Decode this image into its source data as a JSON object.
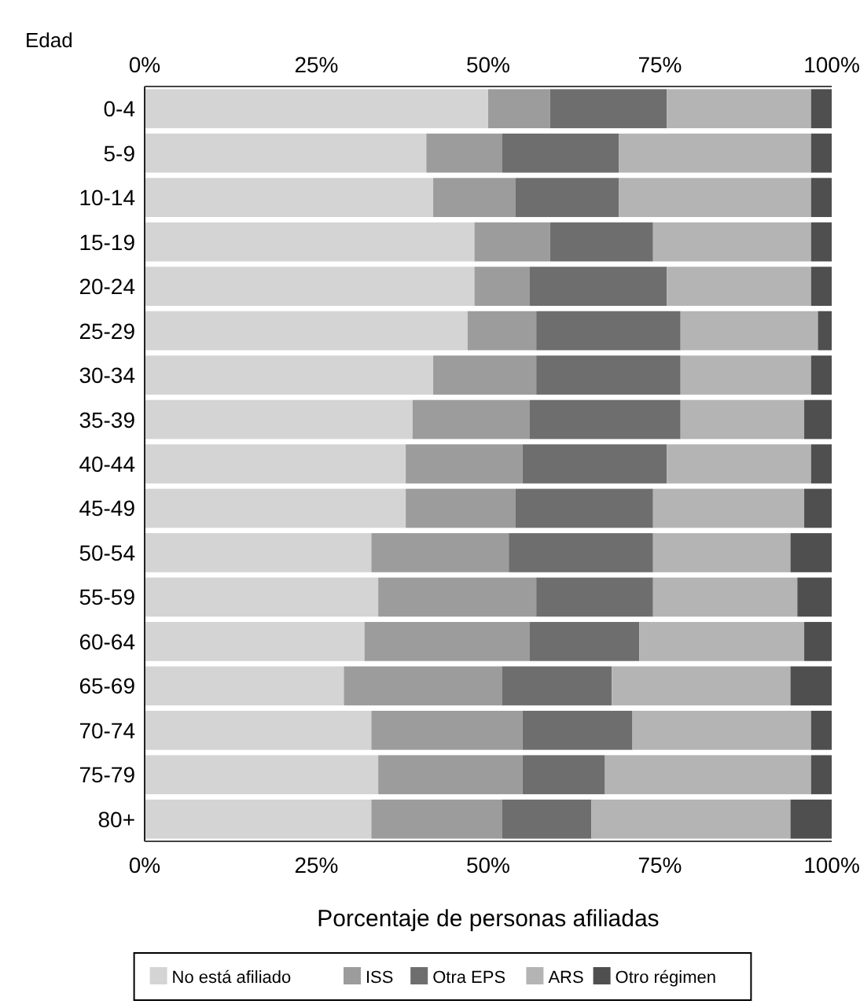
{
  "chart_data": {
    "type": "bar",
    "orientation": "horizontal",
    "stacked": true,
    "ylabel": "Edad",
    "xlabel": "Porcentaje de personas afiliadas",
    "categories": [
      "0-4",
      "5-9",
      "10-14",
      "15-19",
      "20-24",
      "25-29",
      "30-34",
      "35-39",
      "40-44",
      "45-49",
      "50-54",
      "55-59",
      "60-64",
      "65-69",
      "70-74",
      "75-79",
      "80+"
    ],
    "series": [
      {
        "name": "No está afiliado",
        "color": "#d4d4d4",
        "values": [
          50,
          41,
          42,
          48,
          48,
          47,
          42,
          39,
          38,
          38,
          33,
          34,
          32,
          29,
          33,
          34,
          33
        ]
      },
      {
        "name": "ISS",
        "color": "#9c9c9c",
        "values": [
          9,
          11,
          12,
          11,
          8,
          10,
          15,
          17,
          17,
          16,
          20,
          23,
          24,
          23,
          22,
          21,
          19
        ]
      },
      {
        "name": "Otra EPS",
        "color": "#6e6e6e",
        "values": [
          17,
          17,
          15,
          15,
          20,
          21,
          21,
          22,
          21,
          20,
          21,
          17,
          16,
          16,
          16,
          12,
          13
        ]
      },
      {
        "name": "ARS",
        "color": "#b4b4b4",
        "values": [
          21,
          28,
          28,
          23,
          21,
          20,
          19,
          18,
          21,
          22,
          20,
          21,
          24,
          26,
          26,
          30,
          29
        ]
      },
      {
        "name": "Otro régimen",
        "color": "#4f4f4f",
        "values": [
          3,
          3,
          3,
          3,
          3,
          2,
          3,
          4,
          3,
          4,
          6,
          5,
          4,
          6,
          3,
          3,
          6
        ]
      }
    ],
    "xlim": [
      0,
      100
    ],
    "xticks": [
      {
        "value": 0,
        "label": "0%"
      },
      {
        "value": 25,
        "label": "25%"
      },
      {
        "value": 50,
        "label": "50%"
      },
      {
        "value": 75,
        "label": "75%"
      },
      {
        "value": 100,
        "label": "100%"
      }
    ],
    "x2lim": [
      0,
      100
    ],
    "x2ticks": [
      {
        "value": 0,
        "label": "0%"
      },
      {
        "value": 25,
        "label": "25%"
      },
      {
        "value": 50,
        "label": "50%"
      },
      {
        "value": 75,
        "label": "75%"
      },
      {
        "value": 100,
        "label": "100%"
      }
    ],
    "legend": "bottom"
  }
}
